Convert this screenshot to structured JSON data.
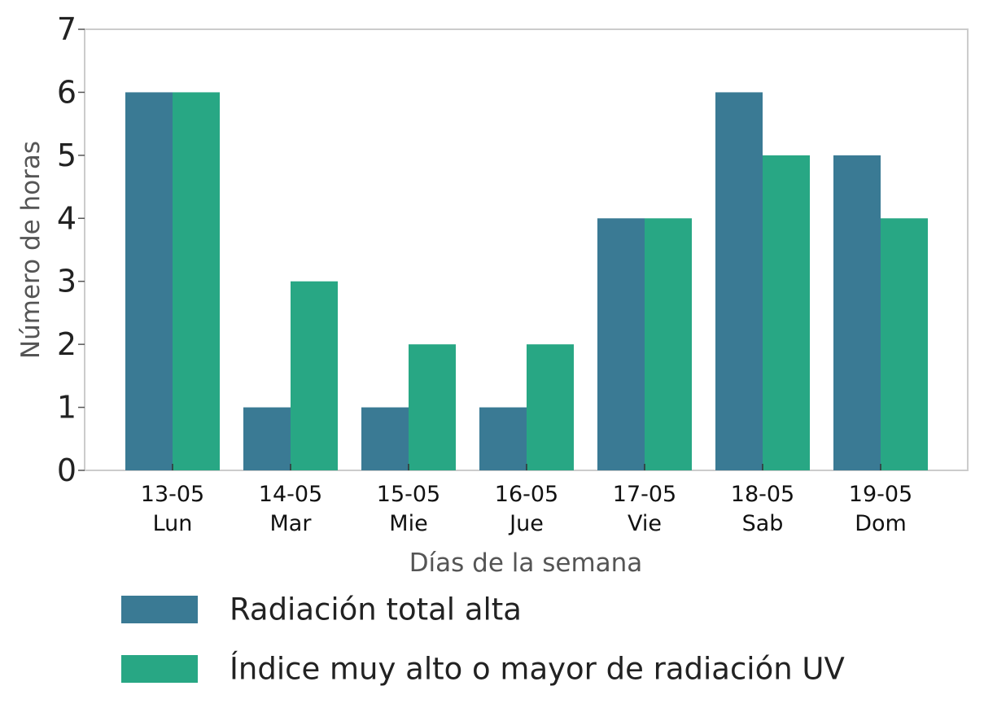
{
  "chart_data": {
    "type": "bar",
    "title": "",
    "xlabel": "Días de la semana",
    "ylabel": "Número de horas",
    "ylim": [
      0,
      7
    ],
    "yticks": [
      0,
      1,
      2,
      3,
      4,
      5,
      6,
      7
    ],
    "grid": false,
    "legend_position": "bottom",
    "categories": [
      {
        "date": "13-05",
        "day": "Lun"
      },
      {
        "date": "14-05",
        "day": "Mar"
      },
      {
        "date": "15-05",
        "day": "Mie"
      },
      {
        "date": "16-05",
        "day": "Jue"
      },
      {
        "date": "17-05",
        "day": "Vie"
      },
      {
        "date": "18-05",
        "day": "Sab"
      },
      {
        "date": "19-05",
        "day": "Dom"
      }
    ],
    "series": [
      {
        "name": "Radiación total alta",
        "color": "#3a7a94",
        "values": [
          6,
          1,
          1,
          1,
          4,
          6,
          5
        ]
      },
      {
        "name": "Índice muy alto o mayor de radiación UV",
        "color": "#28a784",
        "values": [
          6,
          3,
          2,
          2,
          4,
          5,
          4
        ]
      }
    ]
  }
}
